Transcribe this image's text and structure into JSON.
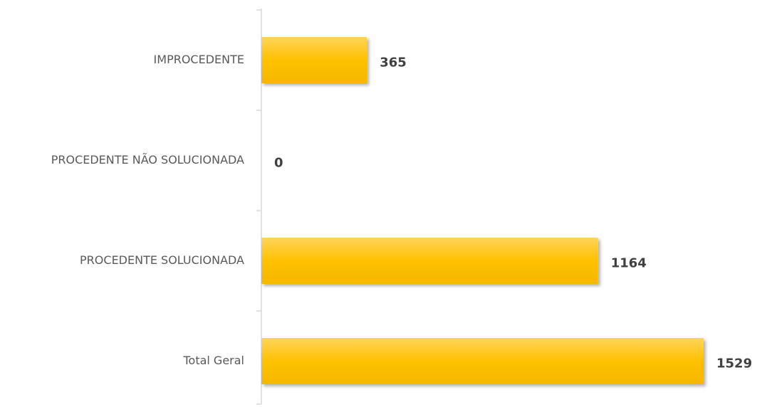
{
  "chart_data": {
    "type": "bar",
    "orientation": "horizontal",
    "categories": [
      "IMPROCEDENTE",
      "PROCEDENTE NÃO SOLUCIONADA",
      "PROCEDENTE SOLUCIONADA",
      "Total Geral"
    ],
    "values": [
      365,
      0,
      1164,
      1529
    ],
    "color": "#ffc000"
  }
}
